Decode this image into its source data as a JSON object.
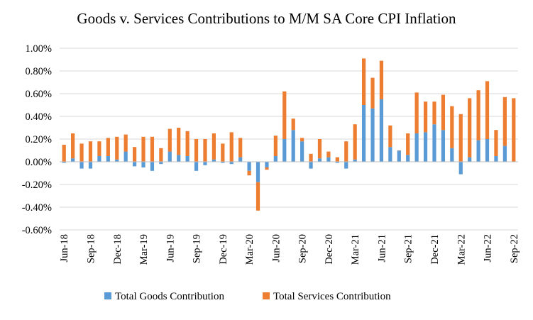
{
  "chart_data": {
    "type": "bar",
    "stacked": true,
    "title": "Goods v. Services Contributions to M/M  SA Core CPI Inflation",
    "xlabel": "",
    "ylabel": "",
    "ylim": [
      -0.6,
      1.0
    ],
    "yticks": [
      "1.00%",
      "0.80%",
      "0.60%",
      "0.40%",
      "0.20%",
      "0.00%",
      "-0.20%",
      "-0.40%",
      "-0.60%"
    ],
    "ytick_values": [
      1.0,
      0.8,
      0.6,
      0.4,
      0.2,
      0.0,
      -0.2,
      -0.4,
      -0.6
    ],
    "grid": true,
    "legend_position": "bottom",
    "categories": [
      "Jun-18",
      "Jul-18",
      "Aug-18",
      "Sep-18",
      "Oct-18",
      "Nov-18",
      "Dec-18",
      "Jan-19",
      "Feb-19",
      "Mar-19",
      "Apr-19",
      "May-19",
      "Jun-19",
      "Jul-19",
      "Aug-19",
      "Sep-19",
      "Oct-19",
      "Nov-19",
      "Dec-19",
      "Jan-20",
      "Feb-20",
      "Mar-20",
      "Apr-20",
      "May-20",
      "Jun-20",
      "Jul-20",
      "Aug-20",
      "Sep-20",
      "Oct-20",
      "Nov-20",
      "Dec-20",
      "Jan-21",
      "Feb-21",
      "Mar-21",
      "Apr-21",
      "May-21",
      "Jun-21",
      "Jul-21",
      "Aug-21",
      "Sep-21",
      "Oct-21",
      "Nov-21",
      "Dec-21",
      "Jan-22",
      "Feb-22",
      "Mar-22",
      "Apr-22",
      "May-22",
      "Jun-22",
      "Jul-22",
      "Aug-22",
      "Sep-22"
    ],
    "x_tick_labels": [
      "Jun-18",
      "Sep-18",
      "Dec-18",
      "Mar-19",
      "Jun-19",
      "Sep-19",
      "Dec-19",
      "Mar-20",
      "Jun-20",
      "Sep-20",
      "Dec-20",
      "Mar-21",
      "Jun-21",
      "Sep-21",
      "Dec-21",
      "Mar-22",
      "Jun-22",
      "Sep-22"
    ],
    "series": [
      {
        "name": "Total Goods Contribution",
        "color": "#5B9BD5",
        "values": [
          -0.01,
          0.03,
          -0.06,
          -0.06,
          0.05,
          0.05,
          0.02,
          0.09,
          -0.04,
          -0.05,
          -0.08,
          -0.02,
          0.09,
          0.06,
          0.05,
          -0.08,
          -0.03,
          0.02,
          -0.01,
          -0.02,
          0.04,
          -0.08,
          -0.18,
          -0.05,
          0.05,
          0.2,
          0.28,
          0.18,
          -0.06,
          0.03,
          0.04,
          -0.01,
          -0.06,
          0.02,
          0.5,
          0.47,
          0.55,
          0.13,
          0.1,
          0.06,
          0.25,
          0.26,
          0.33,
          0.28,
          0.12,
          -0.11,
          0.04,
          0.19,
          0.2,
          0.05,
          0.14,
          0.0
        ]
      },
      {
        "name": "Total Services Contribution",
        "color": "#ED7D31",
        "values": [
          0.15,
          0.22,
          0.16,
          0.18,
          0.13,
          0.16,
          0.2,
          0.15,
          0.13,
          0.22,
          0.22,
          0.12,
          0.2,
          0.24,
          0.22,
          0.2,
          0.2,
          0.23,
          0.16,
          0.26,
          0.17,
          -0.04,
          -0.25,
          -0.02,
          0.18,
          0.42,
          0.1,
          0.03,
          0.07,
          0.17,
          0.05,
          0.04,
          0.18,
          0.31,
          0.41,
          0.27,
          0.34,
          0.19,
          0.0,
          0.19,
          0.36,
          0.27,
          0.2,
          0.31,
          0.37,
          0.42,
          0.52,
          0.44,
          0.51,
          0.23,
          0.43,
          0.56
        ]
      }
    ]
  }
}
